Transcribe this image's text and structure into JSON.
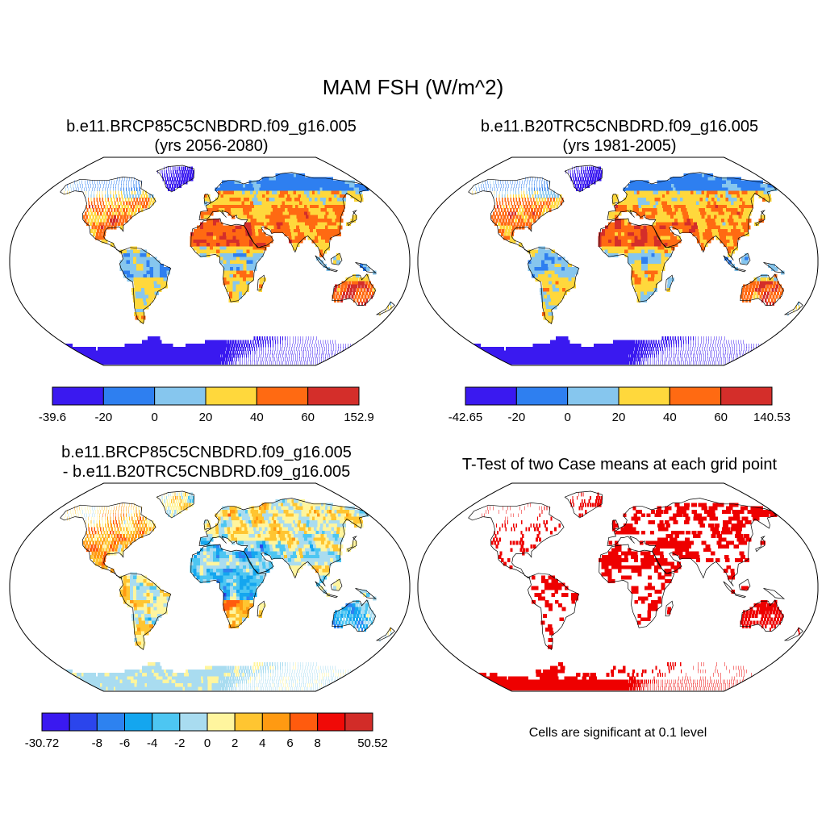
{
  "figure": {
    "title": "MAM FSH (W/m^2)"
  },
  "panels": [
    {
      "id": "case",
      "title_line1": "b.e11.BRCP85C5CNBDRD.f09_g16.005",
      "title_line2": "(yrs 2056-2080)",
      "colorbar": {
        "labels": [
          "-39.6",
          "-20",
          "0",
          "20",
          "40",
          "60",
          "152.9"
        ],
        "colors": [
          "#3a19f0",
          "#2e7ff0",
          "#86c6ee",
          "#ffd83c",
          "#ff6a12",
          "#d42e2a"
        ]
      }
    },
    {
      "id": "control",
      "title_line1": "b.e11.B20TRC5CNBDRD.f09_g16.005",
      "title_line2": "(yrs 1981-2005)",
      "colorbar": {
        "labels": [
          "-42.65",
          "-20",
          "0",
          "20",
          "40",
          "60",
          "140.53"
        ],
        "colors": [
          "#3a19f0",
          "#2e7ff0",
          "#86c6ee",
          "#ffd83c",
          "#ff6a12",
          "#d42e2a"
        ]
      }
    },
    {
      "id": "difference",
      "title_line1": "b.e11.BRCP85C5CNBDRD.f09_g16.005",
      "title_line2": "- b.e11.B20TRC5CNBDRD.f09_g16.005",
      "colorbar": {
        "labels": [
          "-30.72",
          "-8",
          "-6",
          "-4",
          "-2",
          "0",
          "2",
          "4",
          "6",
          "8",
          "50.52"
        ],
        "colors": [
          "#3a19f0",
          "#2b45ec",
          "#2d82f0",
          "#14a6ef",
          "#4dc6f2",
          "#a9dcf0",
          "#fff59e",
          "#ffc531",
          "#ff9a12",
          "#ff5b0e",
          "#f00a07",
          "#d22c28"
        ]
      }
    },
    {
      "id": "ttest",
      "title_line1": "T-Test of two Case means at each grid point",
      "note": "Cells are significant at 0.1 level",
      "significant_color": "#ee0000"
    }
  ]
}
